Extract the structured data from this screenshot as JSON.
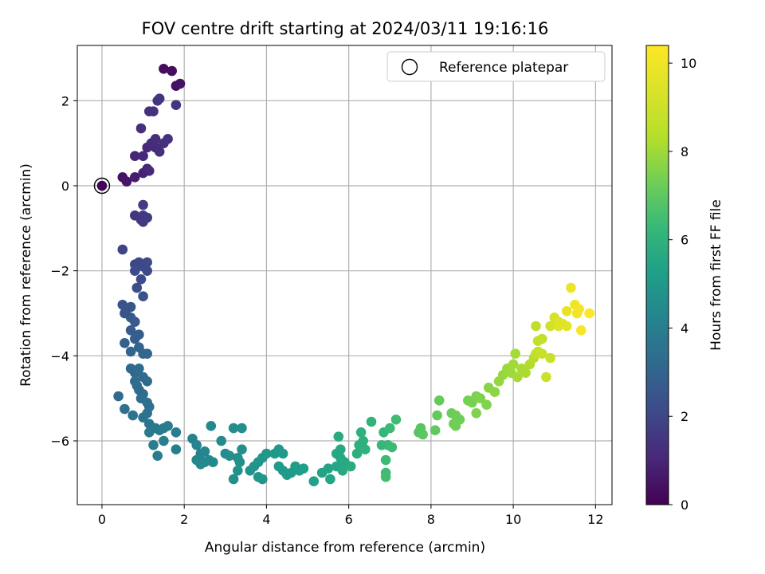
{
  "chart_data": {
    "type": "scatter",
    "title": "FOV centre drift starting at 2024/03/11 19:16:16",
    "xlabel": "Angular distance from reference (arcmin)",
    "ylabel": "Rotation from reference (arcmin)",
    "xlim": [
      -0.6,
      12.4
    ],
    "ylim": [
      -7.5,
      3.3
    ],
    "xticks": [
      0,
      2,
      4,
      6,
      8,
      10,
      12
    ],
    "yticks": [
      -6,
      -4,
      -2,
      0,
      2
    ],
    "grid": true,
    "legend": {
      "placement": "top-right",
      "entries": [
        "Reference platepar"
      ]
    },
    "reference_point": {
      "x": 0,
      "y": 0
    },
    "colorbar": {
      "label": "Hours from first FF file",
      "range": [
        0,
        10.4
      ],
      "ticks": [
        0,
        2,
        4,
        6,
        8,
        10
      ],
      "colormap": "viridis"
    },
    "points": [
      [
        0.0,
        0.0,
        0.1
      ],
      [
        0.5,
        0.2,
        0.5
      ],
      [
        0.6,
        0.1,
        0.6
      ],
      [
        0.8,
        0.2,
        0.8
      ],
      [
        1.0,
        0.3,
        1.0
      ],
      [
        1.1,
        0.4,
        1.1
      ],
      [
        1.15,
        0.35,
        1.15
      ],
      [
        0.8,
        0.7,
        1.1
      ],
      [
        1.0,
        0.7,
        1.2
      ],
      [
        1.1,
        0.9,
        1.2
      ],
      [
        1.2,
        1.0,
        1.3
      ],
      [
        1.3,
        1.1,
        1.35
      ],
      [
        1.4,
        0.8,
        1.4
      ],
      [
        1.5,
        1.0,
        1.45
      ],
      [
        1.6,
        1.1,
        1.5
      ],
      [
        1.3,
        0.9,
        1.3
      ],
      [
        0.95,
        1.35,
        1.4
      ],
      [
        1.15,
        1.75,
        1.45
      ],
      [
        1.25,
        1.75,
        1.5
      ],
      [
        1.35,
        2.0,
        1.55
      ],
      [
        1.4,
        2.05,
        1.6
      ],
      [
        1.8,
        1.9,
        1.6
      ],
      [
        1.8,
        2.35,
        0.45
      ],
      [
        1.9,
        2.4,
        0.5
      ],
      [
        1.5,
        2.75,
        0.3
      ],
      [
        1.7,
        2.7,
        0.35
      ],
      [
        0.8,
        -0.7,
        1.6
      ],
      [
        0.95,
        -0.8,
        1.7
      ],
      [
        1.0,
        -0.7,
        1.75
      ],
      [
        1.1,
        -0.75,
        1.8
      ],
      [
        1.0,
        -0.85,
        1.8
      ],
      [
        1.0,
        -0.45,
        1.85
      ],
      [
        0.5,
        -1.5,
        2.1
      ],
      [
        0.8,
        -1.85,
        2.2
      ],
      [
        0.9,
        -1.8,
        2.25
      ],
      [
        1.0,
        -1.9,
        2.3
      ],
      [
        1.1,
        -1.8,
        2.35
      ],
      [
        1.1,
        -2.0,
        2.35
      ],
      [
        0.95,
        -2.2,
        2.4
      ],
      [
        0.8,
        -2.0,
        2.4
      ],
      [
        0.85,
        -2.4,
        2.5
      ],
      [
        1.0,
        -2.6,
        2.6
      ],
      [
        0.5,
        -2.8,
        2.7
      ],
      [
        0.6,
        -2.9,
        2.8
      ],
      [
        0.7,
        -2.85,
        2.8
      ],
      [
        0.7,
        -3.1,
        2.9
      ],
      [
        0.8,
        -3.2,
        3.0
      ],
      [
        0.7,
        -3.4,
        3.0
      ],
      [
        0.8,
        -3.6,
        3.1
      ],
      [
        0.9,
        -3.5,
        3.1
      ],
      [
        0.55,
        -3.0,
        2.8
      ],
      [
        0.55,
        -3.7,
        3.2
      ],
      [
        0.7,
        -3.9,
        3.3
      ],
      [
        0.9,
        -3.8,
        3.3
      ],
      [
        1.0,
        -3.95,
        3.4
      ],
      [
        1.1,
        -3.95,
        3.45
      ],
      [
        0.7,
        -4.3,
        3.5
      ],
      [
        0.8,
        -4.4,
        3.5
      ],
      [
        0.9,
        -4.3,
        3.55
      ],
      [
        1.0,
        -4.5,
        3.6
      ],
      [
        1.1,
        -4.6,
        3.6
      ],
      [
        0.8,
        -4.6,
        3.6
      ],
      [
        0.85,
        -4.7,
        3.65
      ],
      [
        0.9,
        -4.8,
        3.7
      ],
      [
        1.0,
        -4.9,
        3.7
      ],
      [
        0.4,
        -4.95,
        3.6
      ],
      [
        0.95,
        -5.0,
        3.75
      ],
      [
        1.1,
        -5.1,
        3.8
      ],
      [
        1.15,
        -5.2,
        3.8
      ],
      [
        0.55,
        -5.25,
        3.85
      ],
      [
        0.75,
        -5.4,
        3.9
      ],
      [
        1.1,
        -5.35,
        3.95
      ],
      [
        1.0,
        -5.45,
        3.95
      ],
      [
        1.15,
        -5.6,
        4.1
      ],
      [
        1.15,
        -5.8,
        4.2
      ],
      [
        1.3,
        -5.7,
        4.2
      ],
      [
        1.4,
        -5.75,
        4.25
      ],
      [
        1.5,
        -5.7,
        4.3
      ],
      [
        1.6,
        -5.65,
        4.35
      ],
      [
        1.8,
        -5.8,
        4.4
      ],
      [
        1.25,
        -6.1,
        4.4
      ],
      [
        1.35,
        -6.35,
        4.45
      ],
      [
        1.5,
        -6.0,
        4.5
      ],
      [
        1.8,
        -6.2,
        4.5
      ],
      [
        2.2,
        -5.95,
        4.6
      ],
      [
        2.3,
        -6.1,
        4.7
      ],
      [
        2.4,
        -6.3,
        4.7
      ],
      [
        2.3,
        -6.45,
        4.75
      ],
      [
        2.5,
        -6.5,
        4.8
      ],
      [
        2.6,
        -6.45,
        4.85
      ],
      [
        2.7,
        -6.5,
        4.9
      ],
      [
        2.65,
        -5.65,
        4.9
      ],
      [
        2.5,
        -6.25,
        4.8
      ],
      [
        2.4,
        -6.55,
        4.85
      ],
      [
        2.9,
        -6.0,
        5.0
      ],
      [
        3.0,
        -6.3,
        5.05
      ],
      [
        3.1,
        -6.35,
        5.1
      ],
      [
        3.2,
        -5.7,
        5.1
      ],
      [
        3.4,
        -5.7,
        5.15
      ],
      [
        3.3,
        -6.4,
        5.15
      ],
      [
        3.2,
        -6.9,
        5.2
      ],
      [
        3.3,
        -6.7,
        5.2
      ],
      [
        3.4,
        -6.2,
        5.2
      ],
      [
        3.35,
        -6.5,
        5.25
      ],
      [
        3.6,
        -6.7,
        5.3
      ],
      [
        3.7,
        -6.6,
        5.35
      ],
      [
        3.8,
        -6.5,
        5.4
      ],
      [
        3.9,
        -6.4,
        5.45
      ],
      [
        3.8,
        -6.85,
        5.45
      ],
      [
        3.9,
        -6.9,
        5.5
      ],
      [
        4.0,
        -6.3,
        5.5
      ],
      [
        4.2,
        -6.3,
        5.55
      ],
      [
        4.3,
        -6.2,
        5.55
      ],
      [
        4.4,
        -6.3,
        5.6
      ],
      [
        4.3,
        -6.6,
        5.6
      ],
      [
        4.4,
        -6.7,
        5.65
      ],
      [
        4.5,
        -6.8,
        5.7
      ],
      [
        4.6,
        -6.75,
        5.7
      ],
      [
        4.7,
        -6.6,
        5.75
      ],
      [
        4.8,
        -6.7,
        5.8
      ],
      [
        4.9,
        -6.65,
        5.8
      ],
      [
        5.15,
        -6.95,
        5.9
      ],
      [
        5.35,
        -6.75,
        6.0
      ],
      [
        5.5,
        -6.65,
        6.05
      ],
      [
        5.55,
        -6.9,
        6.1
      ],
      [
        5.7,
        -6.6,
        6.15
      ],
      [
        5.7,
        -6.3,
        6.2
      ],
      [
        5.8,
        -6.4,
        6.2
      ],
      [
        5.8,
        -6.2,
        6.25
      ],
      [
        5.85,
        -6.7,
        6.3
      ],
      [
        5.9,
        -6.5,
        6.3
      ],
      [
        5.75,
        -5.9,
        6.35
      ],
      [
        6.05,
        -6.6,
        6.4
      ],
      [
        6.2,
        -6.3,
        6.5
      ],
      [
        6.25,
        -6.1,
        6.55
      ],
      [
        6.3,
        -5.8,
        6.6
      ],
      [
        6.35,
        -6.0,
        6.6
      ],
      [
        6.4,
        -6.2,
        6.65
      ],
      [
        6.55,
        -5.55,
        6.7
      ],
      [
        6.85,
        -5.8,
        6.9
      ],
      [
        6.8,
        -6.1,
        6.95
      ],
      [
        6.95,
        -6.1,
        7.0
      ],
      [
        7.0,
        -5.7,
        7.05
      ],
      [
        7.05,
        -6.15,
        7.1
      ],
      [
        7.15,
        -5.5,
        7.15
      ],
      [
        6.9,
        -6.45,
        7.1
      ],
      [
        6.9,
        -6.75,
        7.15
      ],
      [
        6.9,
        -6.85,
        7.2
      ],
      [
        7.7,
        -5.8,
        7.6
      ],
      [
        7.75,
        -5.7,
        7.65
      ],
      [
        7.8,
        -5.85,
        7.7
      ],
      [
        8.1,
        -5.75,
        7.8
      ],
      [
        8.15,
        -5.4,
        7.85
      ],
      [
        8.2,
        -5.05,
        7.9
      ],
      [
        8.5,
        -5.35,
        8.0
      ],
      [
        8.6,
        -5.4,
        8.05
      ],
      [
        8.7,
        -5.5,
        8.1
      ],
      [
        8.55,
        -5.6,
        8.1
      ],
      [
        8.6,
        -5.65,
        8.1
      ],
      [
        8.9,
        -5.05,
        8.2
      ],
      [
        9.0,
        -5.1,
        8.25
      ],
      [
        9.1,
        -4.95,
        8.3
      ],
      [
        9.2,
        -5.0,
        8.35
      ],
      [
        9.1,
        -5.35,
        8.35
      ],
      [
        9.35,
        -5.15,
        8.4
      ],
      [
        9.4,
        -4.75,
        8.5
      ],
      [
        9.55,
        -4.85,
        8.6
      ],
      [
        9.65,
        -4.6,
        8.7
      ],
      [
        9.75,
        -4.45,
        8.75
      ],
      [
        9.85,
        -4.3,
        8.8
      ],
      [
        9.95,
        -4.4,
        8.85
      ],
      [
        10.0,
        -4.2,
        8.9
      ],
      [
        10.1,
        -4.5,
        9.0
      ],
      [
        10.05,
        -3.95,
        9.0
      ],
      [
        10.2,
        -4.3,
        9.05
      ],
      [
        10.3,
        -4.4,
        9.1
      ],
      [
        10.4,
        -4.2,
        9.2
      ],
      [
        10.5,
        -4.05,
        9.3
      ],
      [
        10.55,
        -3.3,
        9.4
      ],
      [
        10.55,
        -3.95,
        9.4
      ],
      [
        10.6,
        -3.65,
        9.45
      ],
      [
        10.7,
        -3.6,
        9.5
      ],
      [
        10.6,
        -3.9,
        9.5
      ],
      [
        10.7,
        -3.95,
        9.55
      ],
      [
        10.8,
        -4.5,
        9.6
      ],
      [
        10.9,
        -4.05,
        9.6
      ],
      [
        10.9,
        -3.3,
        9.7
      ],
      [
        11.0,
        -3.1,
        9.8
      ],
      [
        11.1,
        -3.2,
        9.85
      ],
      [
        11.1,
        -3.3,
        9.9
      ],
      [
        11.2,
        -3.25,
        9.95
      ],
      [
        11.3,
        -3.3,
        10.0
      ],
      [
        11.3,
        -2.95,
        10.05
      ],
      [
        11.4,
        -2.4,
        10.1
      ],
      [
        11.5,
        -2.8,
        10.15
      ],
      [
        11.55,
        -3.0,
        10.2
      ],
      [
        11.6,
        -2.9,
        10.25
      ],
      [
        11.65,
        -3.4,
        10.3
      ],
      [
        11.85,
        -3.0,
        10.35
      ]
    ]
  }
}
